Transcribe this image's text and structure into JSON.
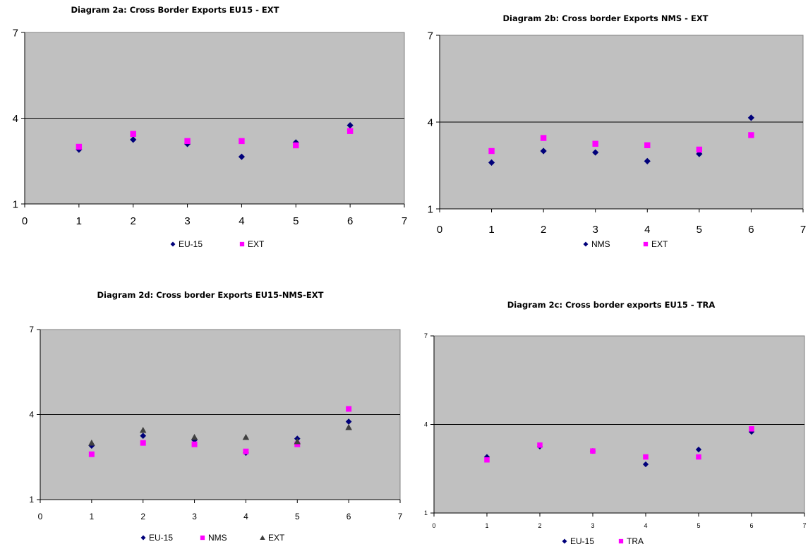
{
  "chart_data": [
    {
      "type": "scatter",
      "title": "Diagram 2a: Cross Border Exports EU15 - EXT",
      "xlabel": "",
      "ylabel": "",
      "xlim": [
        0,
        7
      ],
      "ylim": [
        1,
        7
      ],
      "x_ticks": [
        "0",
        "1",
        "2",
        "3",
        "4",
        "5",
        "6",
        "7"
      ],
      "y_ticks": [
        "1",
        "4",
        "7"
      ],
      "reference_line_y": 4,
      "plot_background": "#c0c0c0",
      "grid": false,
      "legend_position": "bottom",
      "series": [
        {
          "name": "EU-15",
          "marker": "diamond",
          "color": "#00007a",
          "x": [
            1,
            2,
            3,
            4,
            5,
            6
          ],
          "y": [
            2.9,
            3.25,
            3.1,
            2.65,
            3.15,
            3.75
          ]
        },
        {
          "name": "EXT",
          "marker": "square",
          "color": "#ff00ff",
          "x": [
            1,
            2,
            3,
            4,
            5,
            6
          ],
          "y": [
            3.0,
            3.45,
            3.2,
            3.2,
            3.05,
            3.55
          ]
        }
      ]
    },
    {
      "type": "scatter",
      "title": "Diagram 2b: Cross border Exports NMS - EXT",
      "xlabel": "",
      "ylabel": "",
      "xlim": [
        0,
        7
      ],
      "ylim": [
        1,
        7
      ],
      "x_ticks": [
        "0",
        "1",
        "2",
        "3",
        "4",
        "5",
        "6",
        "7"
      ],
      "y_ticks": [
        "1",
        "4",
        "7"
      ],
      "reference_line_y": 4,
      "plot_background": "#c0c0c0",
      "grid": false,
      "legend_position": "bottom",
      "series": [
        {
          "name": "NMS",
          "marker": "diamond",
          "color": "#00007a",
          "x": [
            1,
            2,
            3,
            4,
            5,
            6
          ],
          "y": [
            2.6,
            3.0,
            2.95,
            2.65,
            2.9,
            4.15
          ]
        },
        {
          "name": "EXT",
          "marker": "square",
          "color": "#ff00ff",
          "x": [
            1,
            2,
            3,
            4,
            5,
            6
          ],
          "y": [
            3.0,
            3.45,
            3.25,
            3.2,
            3.05,
            3.55
          ]
        }
      ]
    },
    {
      "type": "scatter",
      "title": "Diagram 2d: Cross border Exports EU15-NMS-EXT",
      "xlabel": "",
      "ylabel": "",
      "xlim": [
        0,
        7
      ],
      "ylim": [
        1,
        7
      ],
      "x_ticks": [
        "0",
        "1",
        "2",
        "3",
        "4",
        "5",
        "6",
        "7"
      ],
      "y_ticks": [
        "1",
        "4",
        "7"
      ],
      "reference_line_y": 4,
      "plot_background": "#c0c0c0",
      "grid": false,
      "legend_position": "bottom",
      "series": [
        {
          "name": "EU-15",
          "marker": "diamond",
          "color": "#00007a",
          "x": [
            1,
            2,
            3,
            4,
            5,
            6
          ],
          "y": [
            2.9,
            3.25,
            3.1,
            2.65,
            3.15,
            3.75
          ]
        },
        {
          "name": "NMS",
          "marker": "square",
          "color": "#ff00ff",
          "x": [
            1,
            2,
            3,
            4,
            5,
            6
          ],
          "y": [
            2.6,
            3.0,
            2.95,
            2.7,
            2.95,
            4.2
          ]
        },
        {
          "name": "EXT",
          "marker": "triangle",
          "color": "#404040",
          "x": [
            1,
            2,
            3,
            4,
            5,
            6
          ],
          "y": [
            3.0,
            3.45,
            3.2,
            3.2,
            3.05,
            3.55
          ]
        }
      ]
    },
    {
      "type": "scatter",
      "title": "Diagram 2c: Cross border exports EU15 - TRA",
      "xlabel": "",
      "ylabel": "",
      "xlim": [
        0,
        7
      ],
      "ylim": [
        1,
        7
      ],
      "x_ticks": [
        "0",
        "1",
        "2",
        "3",
        "4",
        "5",
        "6",
        "7"
      ],
      "y_ticks": [
        "1",
        "4",
        "7"
      ],
      "reference_line_y": 4,
      "plot_background": "#c0c0c0",
      "grid": false,
      "legend_position": "bottom",
      "series": [
        {
          "name": "EU-15",
          "marker": "diamond",
          "color": "#00007a",
          "x": [
            1,
            2,
            3,
            4,
            5,
            6
          ],
          "y": [
            2.9,
            3.25,
            3.1,
            2.65,
            3.15,
            3.75
          ]
        },
        {
          "name": "TRA",
          "marker": "square",
          "color": "#ff00ff",
          "x": [
            1,
            2,
            3,
            4,
            5,
            6
          ],
          "y": [
            2.8,
            3.3,
            3.1,
            2.9,
            2.9,
            3.85
          ]
        }
      ]
    }
  ]
}
